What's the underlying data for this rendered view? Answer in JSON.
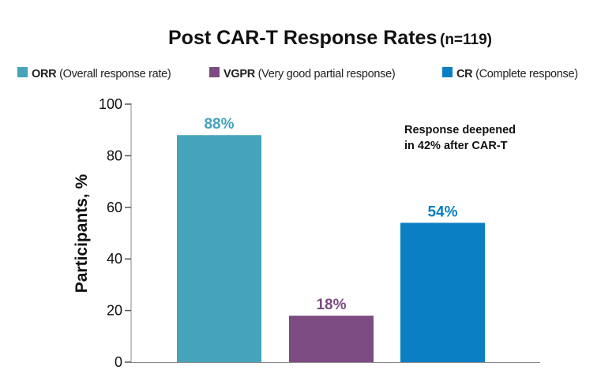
{
  "chart_data": {
    "type": "bar",
    "title": "Post CAR-T Response Rates",
    "subtitle": "(n=119)",
    "categories": [
      "ORR",
      "VGPR",
      "CR"
    ],
    "values": [
      88,
      18,
      54
    ],
    "data_labels": [
      "88%",
      "18%",
      "54%"
    ],
    "colors": [
      "#45A3BA",
      "#7B4B82",
      "#0A7FC4"
    ],
    "legend": [
      {
        "key": "ORR",
        "desc": "(Overall response rate)",
        "color": "#45A3BA"
      },
      {
        "key": "VGPR",
        "desc": "(Very good partial response)",
        "color": "#7B4B82"
      },
      {
        "key": "CR",
        "desc": "(Complete response)",
        "color": "#0A7FC4"
      }
    ],
    "legend_position": "top",
    "xlabel": "",
    "ylabel": "Participants, %",
    "ylim": [
      0,
      100
    ],
    "yticks": [
      "0",
      "20",
      "40",
      "60",
      "80",
      "100"
    ],
    "grid": false,
    "annotation": [
      "Response deepened",
      "in 42% after CAR-T"
    ]
  }
}
